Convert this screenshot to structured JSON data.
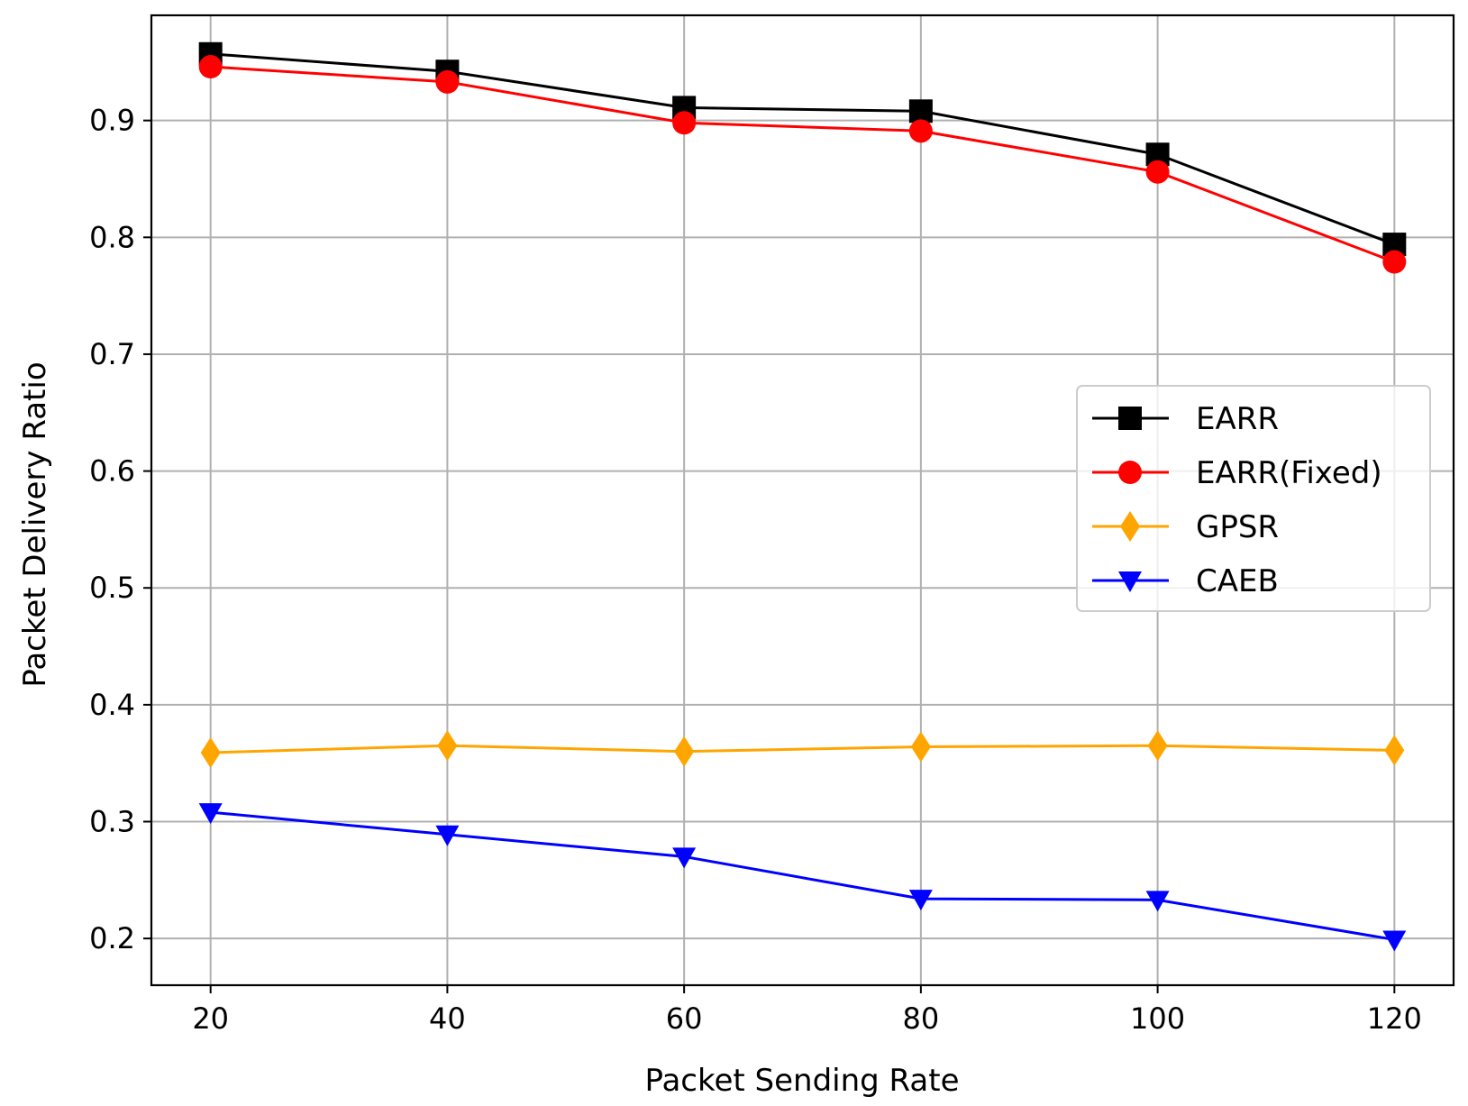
{
  "chart_data": {
    "type": "line",
    "title": "",
    "xlabel": "Packet Sending Rate",
    "ylabel": "Packet Delivery Ratio",
    "x": [
      20,
      40,
      60,
      80,
      100,
      120
    ],
    "xlim": [
      15,
      125
    ],
    "ylim": [
      0.16,
      0.99
    ],
    "xticks": [
      20,
      40,
      60,
      80,
      100,
      120
    ],
    "yticks": [
      0.2,
      0.3,
      0.4,
      0.5,
      0.6,
      0.7,
      0.8,
      0.9
    ],
    "ytick_labels": [
      "0.2",
      "0.3",
      "0.4",
      "0.5",
      "0.6",
      "0.7",
      "0.8",
      "0.9"
    ],
    "grid": true,
    "legend_position": "center-right",
    "series": [
      {
        "name": "EARR",
        "color": "#000000",
        "marker": "square",
        "values": [
          0.957,
          0.942,
          0.911,
          0.908,
          0.871,
          0.794
        ]
      },
      {
        "name": "EARR(Fixed)",
        "color": "#ff0000",
        "marker": "circle",
        "values": [
          0.946,
          0.933,
          0.898,
          0.891,
          0.856,
          0.779
        ]
      },
      {
        "name": "GPSR",
        "color": "#ffa500",
        "marker": "diamond",
        "values": [
          0.359,
          0.365,
          0.36,
          0.364,
          0.365,
          0.361
        ]
      },
      {
        "name": "CAEB",
        "color": "#0000ff",
        "marker": "triangle-down",
        "values": [
          0.308,
          0.289,
          0.27,
          0.234,
          0.233,
          0.199
        ]
      }
    ]
  }
}
